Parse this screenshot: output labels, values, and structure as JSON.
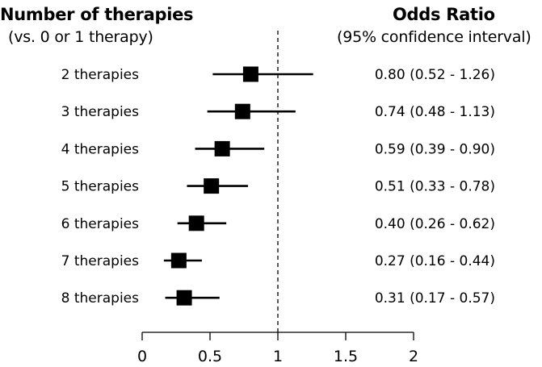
{
  "header": {
    "left_title": "Number of therapies",
    "left_subtitle": "(vs. 0 or 1 therapy)",
    "right_title": "Odds Ratio",
    "right_subtitle": "(95% confidence interval)"
  },
  "chart_data": {
    "type": "forest",
    "xlim": [
      0,
      2
    ],
    "x_ticks": [
      0,
      0.5,
      1,
      1.5,
      2
    ],
    "x_tick_labels": [
      "0",
      "0.5",
      "1",
      "1.5",
      "2"
    ],
    "reference_line": 1,
    "reference_line_style": "dashed",
    "rows": [
      {
        "label": "2 therapies",
        "or": 0.8,
        "lo": 0.52,
        "hi": 1.26,
        "ci_text": "0.80 (0.52 - 1.26)"
      },
      {
        "label": "3 therapies",
        "or": 0.74,
        "lo": 0.48,
        "hi": 1.13,
        "ci_text": "0.74 (0.48 - 1.13)"
      },
      {
        "label": "4 therapies",
        "or": 0.59,
        "lo": 0.39,
        "hi": 0.9,
        "ci_text": "0.59 (0.39 - 0.90)"
      },
      {
        "label": "5 therapies",
        "or": 0.51,
        "lo": 0.33,
        "hi": 0.78,
        "ci_text": "0.51 (0.33 - 0.78)"
      },
      {
        "label": "6 therapies",
        "or": 0.4,
        "lo": 0.26,
        "hi": 0.62,
        "ci_text": "0.40 (0.26 - 0.62)"
      },
      {
        "label": "7 therapies",
        "or": 0.27,
        "lo": 0.16,
        "hi": 0.44,
        "ci_text": "0.27 (0.16 - 0.44)"
      },
      {
        "label": "8 therapies",
        "or": 0.31,
        "lo": 0.17,
        "hi": 0.57,
        "ci_text": "0.31 (0.17 - 0.57)"
      }
    ],
    "colors": {
      "marker": "#000000",
      "line": "#000000"
    }
  }
}
